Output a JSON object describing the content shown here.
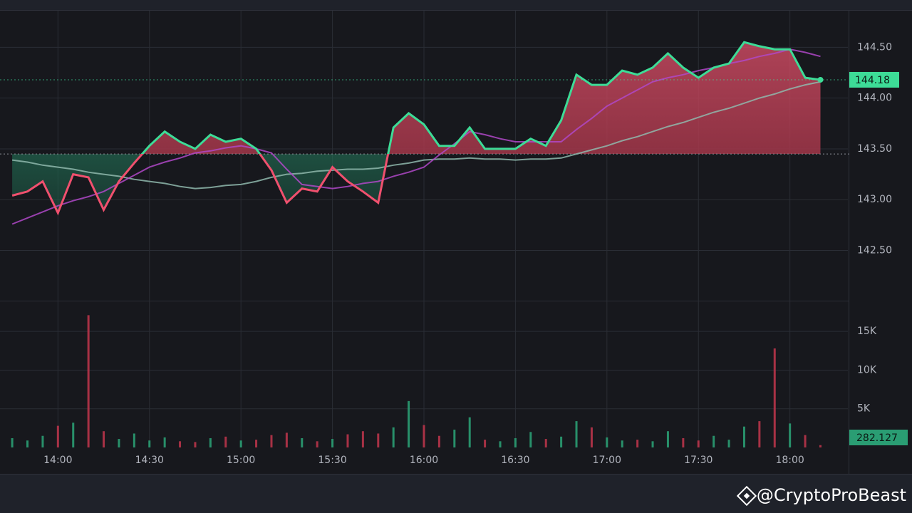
{
  "chart_data": [
    {
      "type": "line",
      "x": [
        "13:45",
        "13:50",
        "13:55",
        "14:00",
        "14:05",
        "14:10",
        "14:15",
        "14:20",
        "14:25",
        "14:30",
        "14:35",
        "14:40",
        "14:45",
        "14:50",
        "14:55",
        "15:00",
        "15:05",
        "15:10",
        "15:15",
        "15:20",
        "15:25",
        "15:30",
        "15:35",
        "15:40",
        "15:45",
        "15:50",
        "15:55",
        "16:00",
        "16:05",
        "16:10",
        "16:15",
        "16:20",
        "16:25",
        "16:30",
        "16:35",
        "16:40",
        "16:45",
        "16:50",
        "16:55",
        "17:00",
        "17:05",
        "17:10",
        "17:15",
        "17:20",
        "17:25",
        "17:30",
        "17:35",
        "17:40",
        "17:45",
        "17:50",
        "17:55",
        "18:00",
        "18:05",
        "18:10"
      ],
      "xlim": [
        "13:41",
        "18:19"
      ],
      "ylim": [
        142.02,
        144.86
      ],
      "yticks": [
        {
          "value": 144.5,
          "label": "144.50"
        },
        {
          "value": 144,
          "label": "144.00"
        },
        {
          "value": 143.5,
          "label": "143.50"
        },
        {
          "value": 143,
          "label": "143.00"
        },
        {
          "value": 142.5,
          "label": "142.50"
        }
      ],
      "baseline": 143.45,
      "up_color": "#3ddc97",
      "down_color": "#f0506e",
      "last_value": 144.18,
      "grid": true,
      "series": [
        {
          "color": "#3ddc97",
          "values": [
            143.04,
            143.08,
            143.18,
            142.87,
            143.25,
            143.22,
            142.9,
            143.18,
            143.36,
            143.53,
            143.67,
            143.57,
            143.5,
            143.64,
            143.57,
            143.6,
            143.5,
            143.29,
            142.97,
            143.11,
            143.08,
            143.32,
            143.18,
            143.08,
            142.97,
            143.71,
            143.85,
            143.74,
            143.53,
            143.53,
            143.71,
            143.5,
            143.5,
            143.5,
            143.6,
            143.53,
            143.78,
            144.23,
            144.13,
            144.13,
            144.27,
            144.23,
            144.3,
            144.44,
            144.3,
            144.2,
            144.3,
            144.34,
            144.55,
            144.51,
            144.48,
            144.48,
            144.2,
            144.18
          ]
        },
        {
          "color": "#8fb8ad",
          "values": [
            143.39,
            143.37,
            143.34,
            143.32,
            143.3,
            143.27,
            143.25,
            143.23,
            143.2,
            143.18,
            143.16,
            143.13,
            143.11,
            143.12,
            143.14,
            143.15,
            143.18,
            143.22,
            143.25,
            143.26,
            143.28,
            143.29,
            143.3,
            143.3,
            143.31,
            143.34,
            143.36,
            143.39,
            143.4,
            143.4,
            143.41,
            143.4,
            143.4,
            143.39,
            143.4,
            143.4,
            143.41,
            143.45,
            143.49,
            143.53,
            143.58,
            143.62,
            143.67,
            143.72,
            143.76,
            143.81,
            143.86,
            143.9,
            143.95,
            144.0,
            144.04,
            144.09,
            144.13,
            144.16
          ]
        },
        {
          "color": "#b048c8",
          "values": [
            142.76,
            142.82,
            142.88,
            142.94,
            142.99,
            143.03,
            143.08,
            143.16,
            143.24,
            143.32,
            143.37,
            143.41,
            143.46,
            143.48,
            143.51,
            143.53,
            143.5,
            143.46,
            143.3,
            143.15,
            143.13,
            143.11,
            143.13,
            143.16,
            143.18,
            143.23,
            143.27,
            143.32,
            143.44,
            143.55,
            143.67,
            143.64,
            143.6,
            143.57,
            143.57,
            143.57,
            143.57,
            143.69,
            143.8,
            143.92,
            144.0,
            144.08,
            144.16,
            144.2,
            144.23,
            144.27,
            144.3,
            144.34,
            144.37,
            144.41,
            144.44,
            144.48,
            144.45,
            144.41
          ]
        }
      ]
    },
    {
      "type": "bar",
      "values": [
        1200,
        900,
        1500,
        2800,
        3200,
        17100,
        2100,
        1100,
        1800,
        900,
        1300,
        800,
        700,
        1200,
        1400,
        900,
        1000,
        1600,
        1900,
        1200,
        800,
        1100,
        1700,
        2100,
        1800,
        2600,
        6000,
        2900,
        1500,
        2300,
        3900,
        1000,
        800,
        1200,
        2000,
        1100,
        1400,
        3400,
        2600,
        1300,
        900,
        1000,
        800,
        2100,
        1200,
        900,
        1500,
        1000,
        2700,
        3400,
        12800,
        3100,
        1600,
        300
      ],
      "ylim": [
        0,
        18700
      ],
      "yticks": [
        {
          "value": 5000,
          "label": "5K"
        },
        {
          "value": 10000,
          "label": "10K"
        },
        {
          "value": 15000,
          "label": "15K"
        }
      ],
      "xticks": [
        "14:00",
        "14:30",
        "15:00",
        "15:30",
        "16:00",
        "16:30",
        "17:00",
        "17:30",
        "18:00"
      ],
      "up_color": "#2a9d73",
      "down_color": "#b8344a",
      "last_label": "282.127"
    }
  ],
  "watermark": "@CryptoProBeast"
}
